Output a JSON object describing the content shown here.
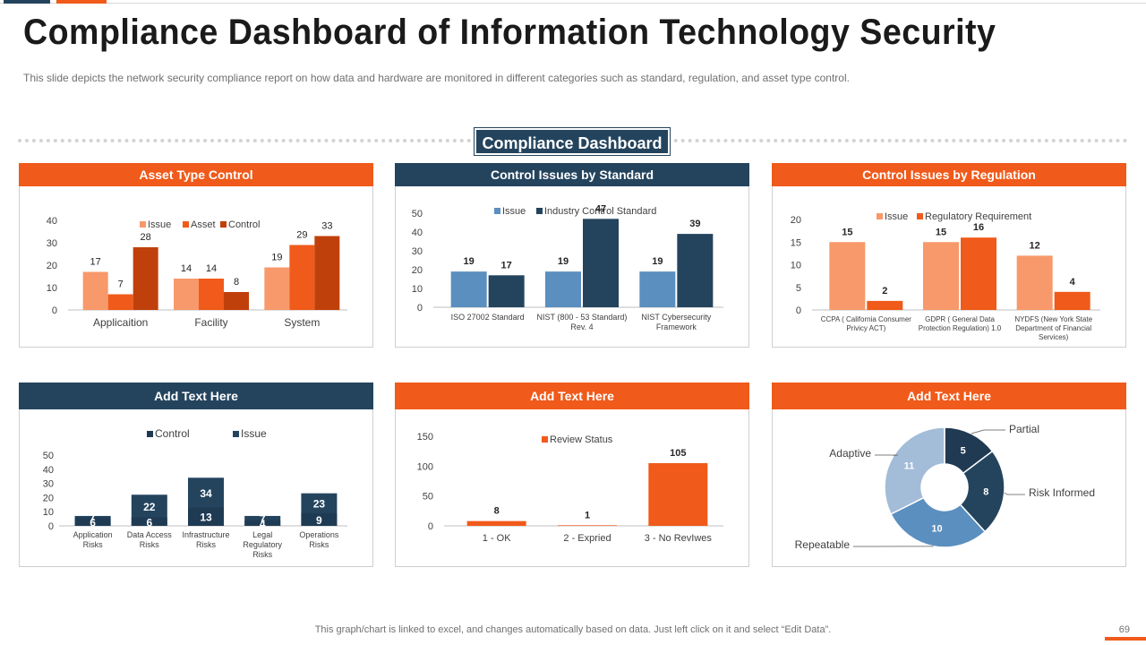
{
  "title": "Compliance Dashboard of Information Technology Security",
  "subtitle": "This slide depicts the network  security compliance report  on how data and hardware  are monitored in different  categories such as standard,  regulation,  and asset type control.",
  "dashboard_label": "Compliance Dashboard",
  "footer": "This graph/chart is linked to excel,  and changes automatically based on data. Just left click on it and select “Edit Data”.",
  "page_number": "69",
  "colors": {
    "navy": "#24445e",
    "orange": "#f05a1a",
    "light_orange": "#f7996a",
    "dark_orange": "#c0400b",
    "blue": "#5b8fbf",
    "light_blue": "#a3bcd8"
  },
  "panels": {
    "asset": {
      "header": "Asset Type Control"
    },
    "standard": {
      "header": "Control Issues by Standard"
    },
    "regulation": {
      "header": "Control Issues by Regulation"
    },
    "risks": {
      "header": "Add  Text Here"
    },
    "review": {
      "header": "Add  Text Here"
    },
    "maturity": {
      "header": "Add  Text Here"
    }
  },
  "chart_data": [
    {
      "id": "asset",
      "type": "bar",
      "title": "Asset Type Control",
      "categories": [
        "Applicaition",
        "Facility",
        "System"
      ],
      "series": [
        {
          "name": "Issue",
          "values": [
            17,
            14,
            19
          ],
          "color": "#f7996a"
        },
        {
          "name": "Asset",
          "values": [
            7,
            14,
            29
          ],
          "color": "#f05a1a"
        },
        {
          "name": "Control",
          "values": [
            28,
            8,
            33
          ],
          "color": "#c0400b"
        }
      ],
      "ylim": [
        0,
        40
      ],
      "yticks": [
        0,
        10,
        20,
        30,
        40
      ],
      "legend": "top"
    },
    {
      "id": "standard",
      "type": "bar",
      "title": "Control Issues by Standard",
      "categories": [
        "ISO 27002 Standard",
        "NIST (800 - 53 Standard) Rev. 4",
        "NIST Cybersecurity Framework"
      ],
      "category_lines": [
        [
          "ISO 27002 Standard"
        ],
        [
          "NIST (800 - 53 Standard)",
          "Rev. 4"
        ],
        [
          "NIST Cybersecurity",
          "Framework"
        ]
      ],
      "series": [
        {
          "name": "Issue",
          "values": [
            19,
            19,
            19
          ],
          "color": "#5b8fbf"
        },
        {
          "name": "Industry Control Standard",
          "values": [
            17,
            47,
            39
          ],
          "color": "#24445e"
        }
      ],
      "ylim": [
        0,
        50
      ],
      "yticks": [
        0,
        10,
        20,
        30,
        40,
        50
      ],
      "legend": "top"
    },
    {
      "id": "regulation",
      "type": "bar",
      "title": "Control Issues by Regulation",
      "categories": [
        "CCPA ( California Consumer Privicy ACT)",
        "GDPR ( General Data Protection Regulation) 1.0",
        "NYDFS (New York State Department of Financial Services)"
      ],
      "category_lines": [
        [
          "CCPA ( California Consumer",
          "Privicy ACT)"
        ],
        [
          "GDPR ( General Data",
          "Protection Regulation) 1.0"
        ],
        [
          "NYDFS (New York State",
          "Department of Financial",
          "Services)"
        ]
      ],
      "series": [
        {
          "name": "Issue",
          "values": [
            15,
            15,
            12
          ],
          "color": "#f7996a"
        },
        {
          "name": "Regulatory Requirement",
          "values": [
            2,
            16,
            4
          ],
          "color": "#f05a1a"
        }
      ],
      "ylim": [
        0,
        20
      ],
      "yticks": [
        0,
        5,
        10,
        15,
        20
      ],
      "legend": "top"
    },
    {
      "id": "risks",
      "type": "bar",
      "stacked": true,
      "title": "Add  Text Here",
      "categories": [
        "Application Risks",
        "Data Access Risks",
        "Infrastructure Risks",
        "Legal Regulatory Risks",
        "Operations Risks"
      ],
      "category_lines": [
        [
          "Application",
          "Risks"
        ],
        [
          "Data Access",
          "Risks"
        ],
        [
          "Infrastructure",
          "Risks"
        ],
        [
          "Legal",
          "Regulatory",
          "Risks"
        ],
        [
          "Operations",
          "Risks"
        ]
      ],
      "series": [
        {
          "name": "Control",
          "values": [
            6,
            6,
            13,
            4,
            9
          ],
          "color": "#1f3a52"
        },
        {
          "name": "Issue",
          "values": [
            7,
            22,
            34,
            7,
            23
          ],
          "color": "#24445e"
        }
      ],
      "ylim": [
        0,
        50
      ],
      "yticks": [
        0,
        10,
        20,
        30,
        40,
        50
      ],
      "legend": "top"
    },
    {
      "id": "review",
      "type": "bar",
      "title": "Add  Text Here",
      "categories": [
        "1 - OK",
        "2 - Expried",
        "3 - No RevIwes"
      ],
      "series": [
        {
          "name": "Review Status",
          "values": [
            8,
            1,
            105
          ],
          "color": "#f05a1a"
        }
      ],
      "ylim": [
        0,
        150
      ],
      "yticks": [
        0,
        50,
        100,
        150
      ],
      "legend": "top"
    },
    {
      "id": "maturity",
      "type": "pie",
      "donut": true,
      "title": "Add  Text Here",
      "slices": [
        {
          "label": "Partial",
          "value": 5,
          "color": "#1f3a52"
        },
        {
          "label": "Risk Informed",
          "value": 8,
          "color": "#24445e"
        },
        {
          "label": "Repeatable",
          "value": 10,
          "color": "#5b8fbf"
        },
        {
          "label": "Adaptive",
          "value": 11,
          "color": "#a3bcd8"
        }
      ]
    }
  ]
}
